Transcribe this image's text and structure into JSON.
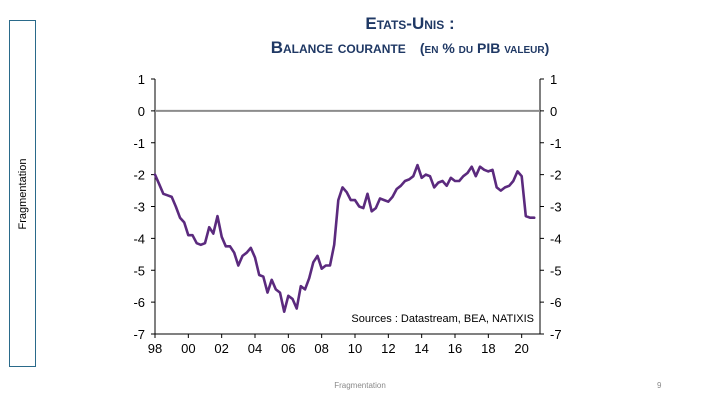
{
  "sidebar": {
    "label": "Fragmentation"
  },
  "title": {
    "line1": "Etats-Unis :",
    "line2_main": "Balance courante",
    "line2_paren": "(en % du PIB valeur)"
  },
  "footer": {
    "center": "Fragmentation",
    "page": "9"
  },
  "chart_data": {
    "type": "line",
    "title": "Etats-Unis : Balance courante (en % du PIB valeur)",
    "xlabel": "",
    "ylabel": "",
    "xlim": [
      1998,
      2021.1
    ],
    "ylim": [
      -7,
      1
    ],
    "x_ticks": [
      {
        "value": 1998,
        "label": "98"
      },
      {
        "value": 2000,
        "label": "00"
      },
      {
        "value": 2002,
        "label": "02"
      },
      {
        "value": 2004,
        "label": "04"
      },
      {
        "value": 2006,
        "label": "06"
      },
      {
        "value": 2008,
        "label": "08"
      },
      {
        "value": 2010,
        "label": "10"
      },
      {
        "value": 2012,
        "label": "12"
      },
      {
        "value": 2014,
        "label": "14"
      },
      {
        "value": 2016,
        "label": "16"
      },
      {
        "value": 2018,
        "label": "18"
      },
      {
        "value": 2020,
        "label": "20"
      }
    ],
    "y_ticks": [
      1,
      0,
      -1,
      -2,
      -3,
      -4,
      -5,
      -6,
      -7
    ],
    "zero_line": true,
    "grid": false,
    "annotation": "Sources : Datastream,  BEA, NATIXIS",
    "series_color": "#5b2a7e",
    "series": [
      {
        "x": [
          1998.0,
          1998.25,
          1998.5,
          1998.75,
          1999.0,
          1999.25,
          1999.5,
          1999.75,
          2000.0,
          2000.25,
          2000.5,
          2000.75,
          2001.0,
          2001.25,
          2001.5,
          2001.75,
          2002.0,
          2002.25,
          2002.5,
          2002.75,
          2003.0,
          2003.25,
          2003.5,
          2003.75,
          2004.0,
          2004.25,
          2004.5,
          2004.75,
          2005.0,
          2005.25,
          2005.5,
          2005.75,
          2006.0,
          2006.25,
          2006.5,
          2006.75,
          2007.0,
          2007.25,
          2007.5,
          2007.75,
          2008.0,
          2008.25,
          2008.5,
          2008.75,
          2009.0,
          2009.25,
          2009.5,
          2009.75,
          2010.0,
          2010.25,
          2010.5,
          2010.75,
          2011.0,
          2011.25,
          2011.5,
          2011.75,
          2012.0,
          2012.25,
          2012.5,
          2012.75,
          2013.0,
          2013.25,
          2013.5,
          2013.75,
          2014.0,
          2014.25,
          2014.5,
          2014.75,
          2015.0,
          2015.25,
          2015.5,
          2015.75,
          2016.0,
          2016.25,
          2016.5,
          2016.75,
          2017.0,
          2017.25,
          2017.5,
          2017.75,
          2018.0,
          2018.25,
          2018.5,
          2018.75,
          2019.0,
          2019.25,
          2019.5,
          2019.75,
          2020.0,
          2020.25,
          2020.5,
          2020.75
        ],
        "y": [
          -2.0,
          -2.3,
          -2.6,
          -2.65,
          -2.7,
          -3.0,
          -3.35,
          -3.5,
          -3.9,
          -3.9,
          -4.15,
          -4.2,
          -4.15,
          -3.65,
          -3.85,
          -3.3,
          -3.95,
          -4.25,
          -4.25,
          -4.45,
          -4.85,
          -4.55,
          -4.45,
          -4.3,
          -4.6,
          -5.15,
          -5.2,
          -5.7,
          -5.3,
          -5.6,
          -5.7,
          -6.3,
          -5.8,
          -5.9,
          -6.2,
          -5.5,
          -5.6,
          -5.25,
          -4.75,
          -4.55,
          -4.95,
          -4.85,
          -4.85,
          -4.2,
          -2.8,
          -2.4,
          -2.55,
          -2.8,
          -2.8,
          -3.0,
          -3.05,
          -2.6,
          -3.15,
          -3.05,
          -2.75,
          -2.8,
          -2.85,
          -2.7,
          -2.45,
          -2.35,
          -2.2,
          -2.15,
          -2.05,
          -1.7,
          -2.1,
          -2.0,
          -2.05,
          -2.4,
          -2.25,
          -2.2,
          -2.35,
          -2.1,
          -2.2,
          -2.2,
          -2.05,
          -1.95,
          -1.75,
          -2.05,
          -1.75,
          -1.85,
          -1.9,
          -1.85,
          -2.4,
          -2.5,
          -2.4,
          -2.35,
          -2.2,
          -1.9,
          -2.05,
          -3.3,
          -3.35,
          -3.35
        ]
      }
    ]
  }
}
